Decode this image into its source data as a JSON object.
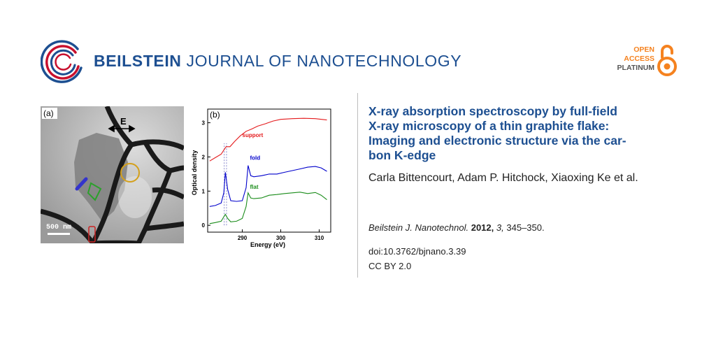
{
  "header": {
    "journal_bold": "BEILSTEIN",
    "journal_rest": "JOURNAL OF NANOTECHNOLOGY",
    "oa_line1": "OPEN",
    "oa_line2": "ACCESS",
    "oa_line3": "PLATINUM"
  },
  "figure_a": {
    "panel_label": "(a)",
    "field_label": "E",
    "scalebar_label": "500 nm"
  },
  "figure_b": {
    "panel_label": "(b)"
  },
  "chart_data": {
    "type": "line",
    "xlabel": "Energy (eV)",
    "ylabel": "Optical density",
    "xlim": [
      281,
      313
    ],
    "ylim": [
      -0.2,
      3.4
    ],
    "xticks": [
      290,
      300,
      310
    ],
    "yticks": [
      0,
      1,
      2,
      3
    ],
    "series": [
      {
        "name": "support",
        "color": "#e41a1c",
        "x": [
          281.5,
          283,
          284.5,
          285.3,
          285.8,
          286.8,
          288,
          289.5,
          291,
          292.5,
          294,
          296,
          298,
          300,
          303,
          306,
          309,
          312
        ],
        "y": [
          1.88,
          1.98,
          2.08,
          2.22,
          2.3,
          2.3,
          2.45,
          2.62,
          2.75,
          2.82,
          2.9,
          2.97,
          3.05,
          3.1,
          3.12,
          3.13,
          3.12,
          3.08
        ]
      },
      {
        "name": "fold",
        "color": "#0000cc",
        "x": [
          281.5,
          283,
          284.5,
          285.2,
          285.6,
          286.2,
          287,
          288.5,
          290,
          291,
          291.5,
          292.2,
          293,
          295,
          297,
          299,
          301,
          303,
          305,
          307,
          309,
          310.5,
          312
        ],
        "y": [
          0.55,
          0.58,
          0.65,
          0.95,
          1.55,
          1.05,
          0.72,
          0.7,
          0.72,
          1.1,
          1.75,
          1.45,
          1.42,
          1.45,
          1.5,
          1.5,
          1.55,
          1.6,
          1.65,
          1.7,
          1.72,
          1.68,
          1.58
        ]
      },
      {
        "name": "flat",
        "color": "#1a8c1a",
        "x": [
          281.5,
          283,
          284.5,
          285.2,
          285.6,
          286.2,
          287,
          288.5,
          290,
          291,
          291.5,
          292.2,
          293,
          295,
          297,
          299,
          301,
          303,
          305,
          307,
          309,
          310.5,
          312
        ],
        "y": [
          0.05,
          0.08,
          0.12,
          0.25,
          0.32,
          0.2,
          0.1,
          0.12,
          0.2,
          0.55,
          0.95,
          0.8,
          0.78,
          0.8,
          0.88,
          0.9,
          0.93,
          0.95,
          0.97,
          0.93,
          0.96,
          0.88,
          0.75
        ]
      }
    ],
    "reference_lines_x": [
      285.3,
      285.9
    ]
  },
  "article": {
    "title_lines": [
      "X-ray absorption spectroscopy by full-field",
      "X-ray microscopy of a thin graphite flake:",
      "Imaging and electronic structure via the car-",
      "bon K-edge"
    ],
    "authors": "Carla Bittencourt, Adam P. Hitchock, Xiaoxing Ke et al.",
    "citation_journal": "Beilstein J. Nanotechnol.",
    "citation_year": "2012,",
    "citation_volume": "3,",
    "citation_pages": "345–350.",
    "doi": "doi:10.3762/bjnano.3.39",
    "license": "CC BY 2.0"
  }
}
